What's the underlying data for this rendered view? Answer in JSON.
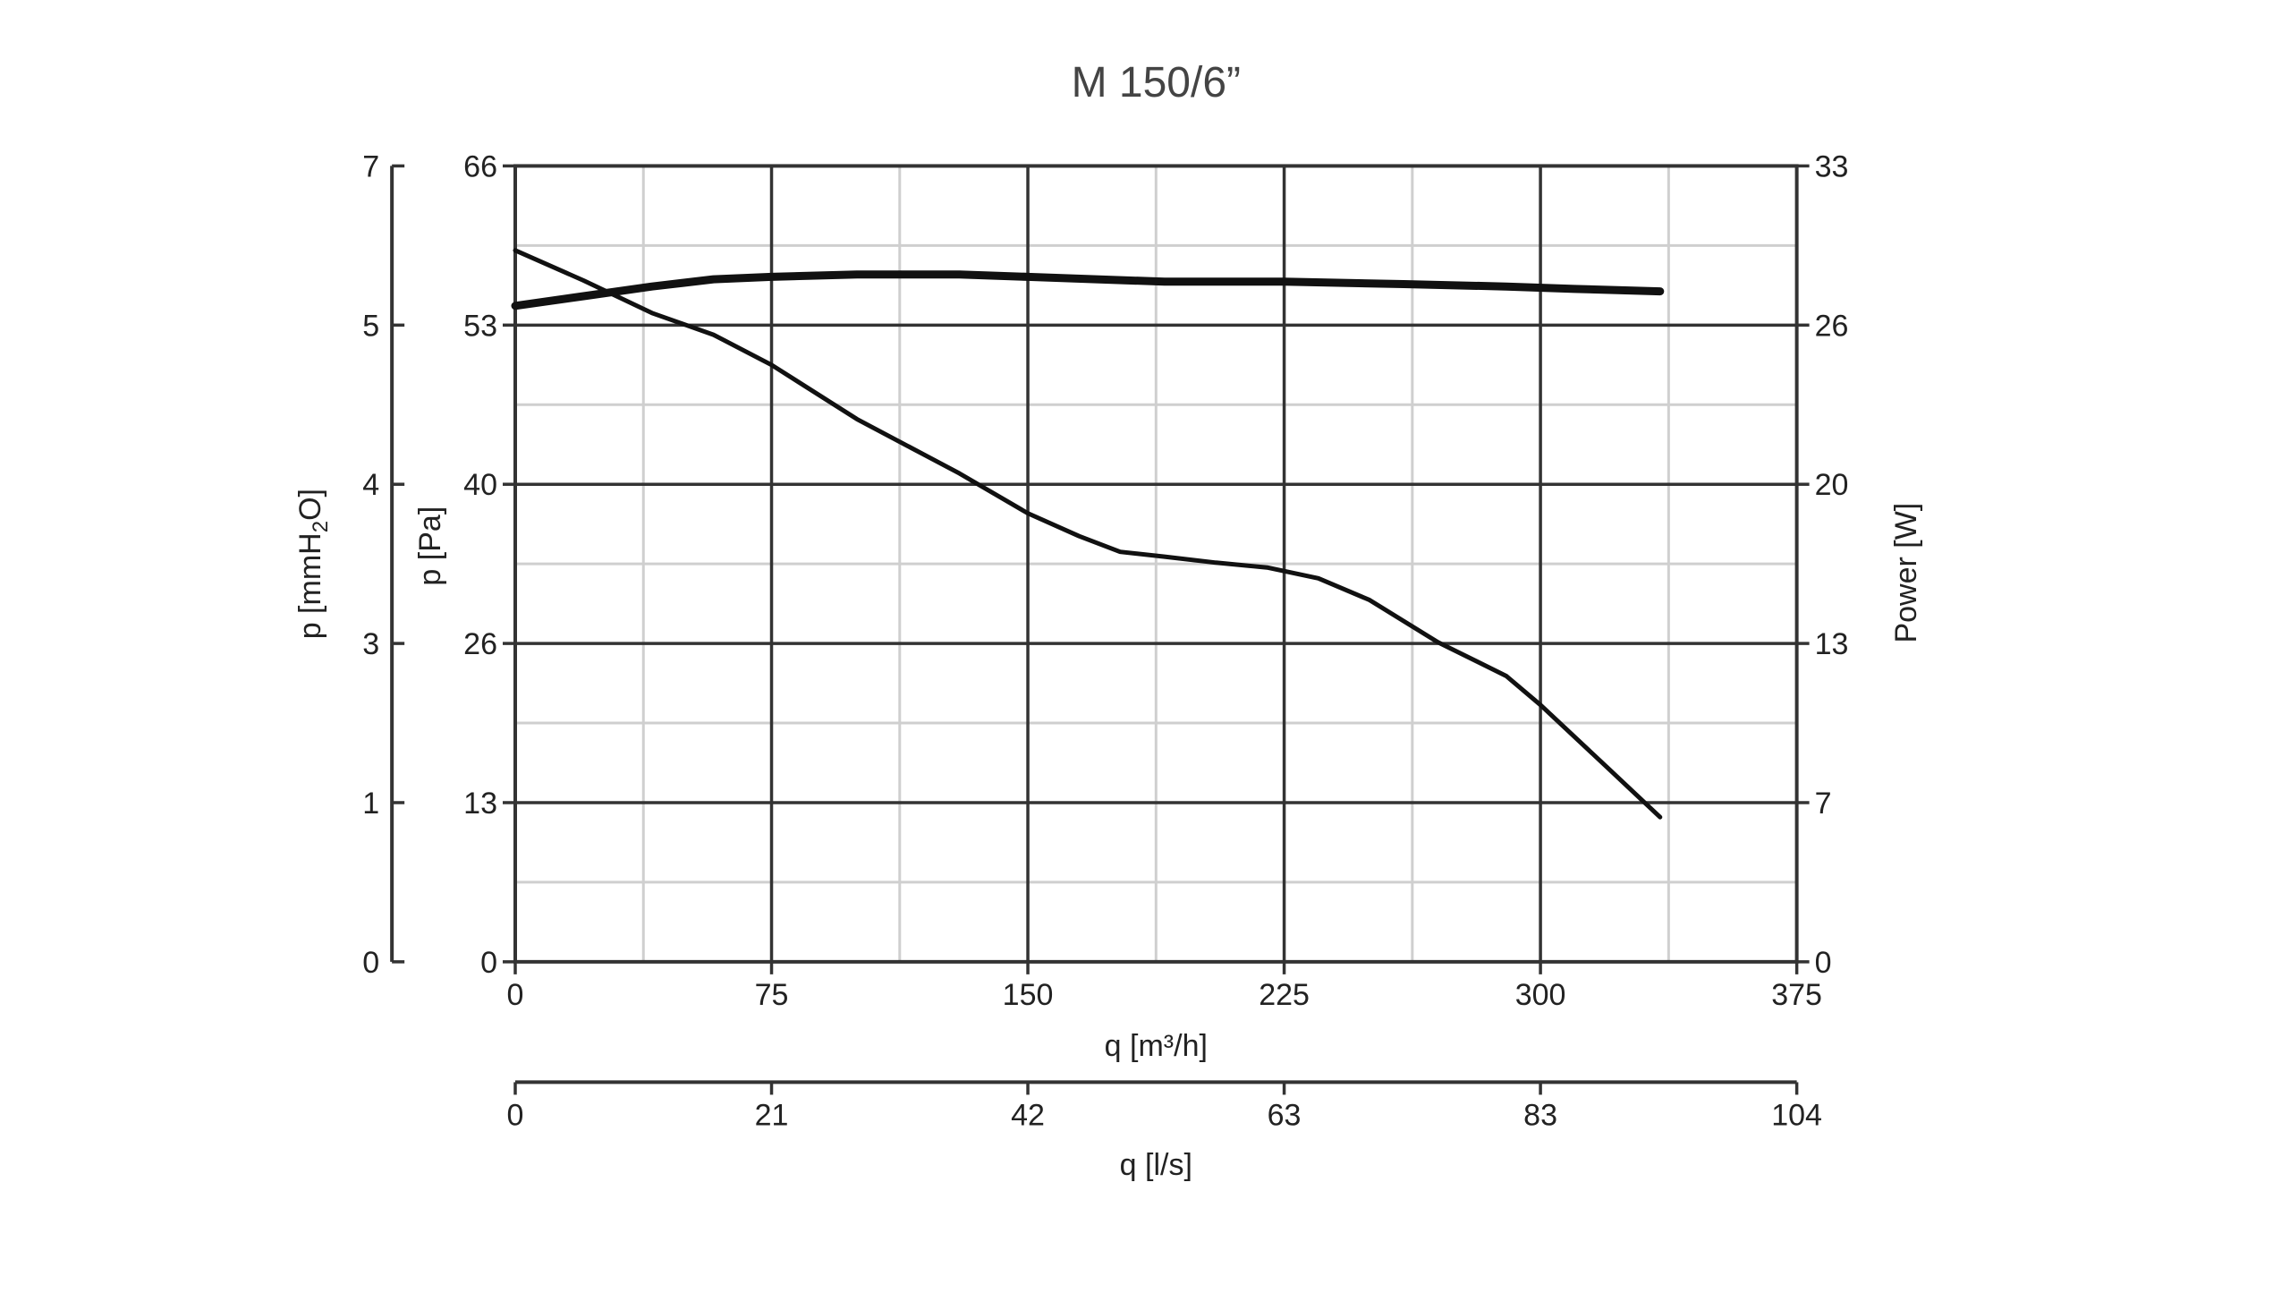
{
  "chart_data": {
    "type": "line",
    "title": "M 150/6”",
    "xlabel": "q [m³/h]",
    "x2label": "q [l/s]",
    "ylabel_left_outer_prefix": "p [mmH",
    "ylabel_left_outer_sub": "2",
    "ylabel_left_outer_suffix": "O]",
    "ylabel_left": "p [Pa]",
    "ylabel_right": "Power [W]",
    "xlim": [
      0,
      375
    ],
    "ylim": [
      0,
      66
    ],
    "y2lim": [
      0,
      33
    ],
    "x_ticks": [
      "0",
      "75",
      "150",
      "225",
      "300",
      "375"
    ],
    "x2_ticks": [
      "0",
      "21",
      "42",
      "63",
      "83",
      "104"
    ],
    "y_ticks_pa": [
      "0",
      "13",
      "26",
      "40",
      "53",
      "66"
    ],
    "y_ticks_mmh2o": [
      "0",
      "1",
      "3",
      "4",
      "5",
      "7"
    ],
    "y_ticks_power": [
      "0",
      "7",
      "13",
      "20",
      "26",
      "33"
    ],
    "grid": true,
    "series": [
      {
        "axis": "pa",
        "x": [
          0,
          20,
          40,
          58,
          75,
          100,
          130,
          150,
          165,
          177,
          190,
          205,
          220,
          235,
          250,
          270,
          290,
          300,
          320,
          335
        ],
        "y": [
          59,
          56.5,
          53.8,
          52,
          49.5,
          45,
          40.5,
          37.2,
          35.3,
          34,
          33.6,
          33.1,
          32.7,
          31.8,
          30,
          26.5,
          23.7,
          21.3,
          16,
          12
        ]
      },
      {
        "axis": "power",
        "x": [
          0,
          20,
          40,
          58,
          75,
          100,
          130,
          150,
          170,
          190,
          225,
          260,
          290,
          310,
          335
        ],
        "y": [
          27.2,
          27.6,
          28.0,
          28.3,
          28.4,
          28.5,
          28.5,
          28.4,
          28.3,
          28.2,
          28.2,
          28.1,
          28.0,
          27.9,
          27.8
        ]
      }
    ]
  }
}
